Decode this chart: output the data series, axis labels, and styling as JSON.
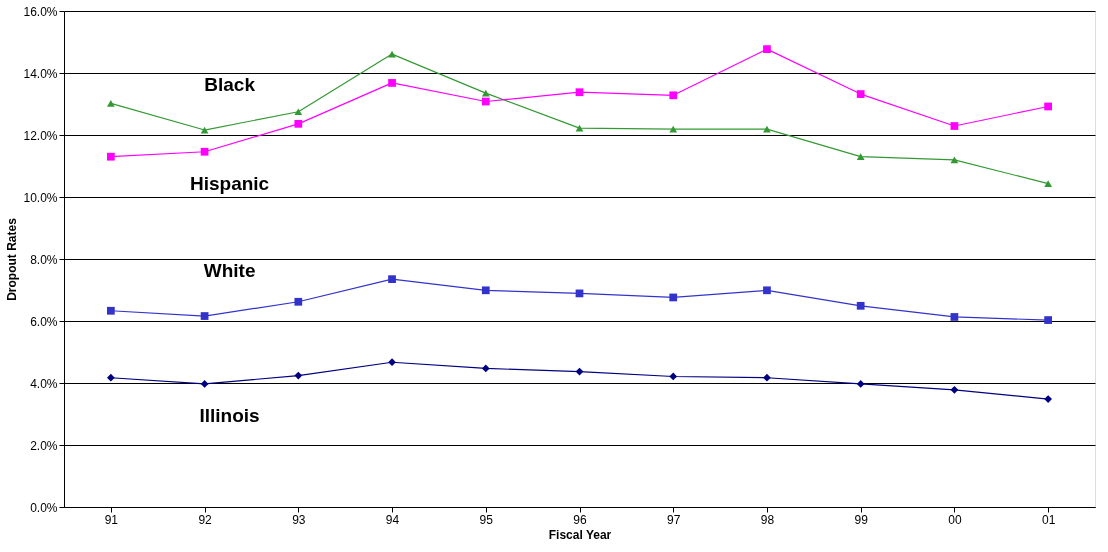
{
  "chart_data": {
    "type": "line",
    "xlabel": "Fiscal Year",
    "ylabel": "Dropout Rates",
    "categories": [
      "91",
      "92",
      "93",
      "94",
      "95",
      "96",
      "97",
      "98",
      "99",
      "00",
      "01"
    ],
    "series": [
      {
        "name": "Black",
        "color": "#339933",
        "marker": "triangle",
        "values": [
          13.02,
          12.16,
          12.75,
          14.61,
          13.35,
          12.22,
          12.19,
          12.19,
          11.3,
          11.2,
          10.43
        ]
      },
      {
        "name": "Hispanic",
        "color": "#ff00ff",
        "marker": "square",
        "values": [
          11.3,
          11.46,
          12.36,
          13.68,
          13.08,
          13.38,
          13.28,
          14.77,
          13.32,
          12.29,
          12.92
        ]
      },
      {
        "name": "White",
        "color": "#3333cc",
        "marker": "square",
        "values": [
          6.33,
          6.16,
          6.62,
          7.35,
          6.99,
          6.89,
          6.76,
          6.99,
          6.49,
          6.13,
          6.03
        ]
      },
      {
        "name": "Illinois",
        "color": "#000080",
        "marker": "diamond",
        "values": [
          4.17,
          3.97,
          4.24,
          4.67,
          4.47,
          4.37,
          4.21,
          4.17,
          3.97,
          3.78,
          3.48
        ]
      }
    ],
    "ylim": [
      0,
      16
    ],
    "yticks": [
      {
        "value": 0,
        "label": "0.0%"
      },
      {
        "value": 2,
        "label": "2.0%"
      },
      {
        "value": 4,
        "label": "4.0%"
      },
      {
        "value": 6,
        "label": "6.0%"
      },
      {
        "value": 8,
        "label": "8.0%"
      },
      {
        "value": 10,
        "label": "10.0%"
      },
      {
        "value": 12,
        "label": "12.0%"
      },
      {
        "value": 14,
        "label": "14.0%"
      },
      {
        "value": 16,
        "label": "16.0%"
      }
    ],
    "grid": "y",
    "line_style": "solid"
  }
}
